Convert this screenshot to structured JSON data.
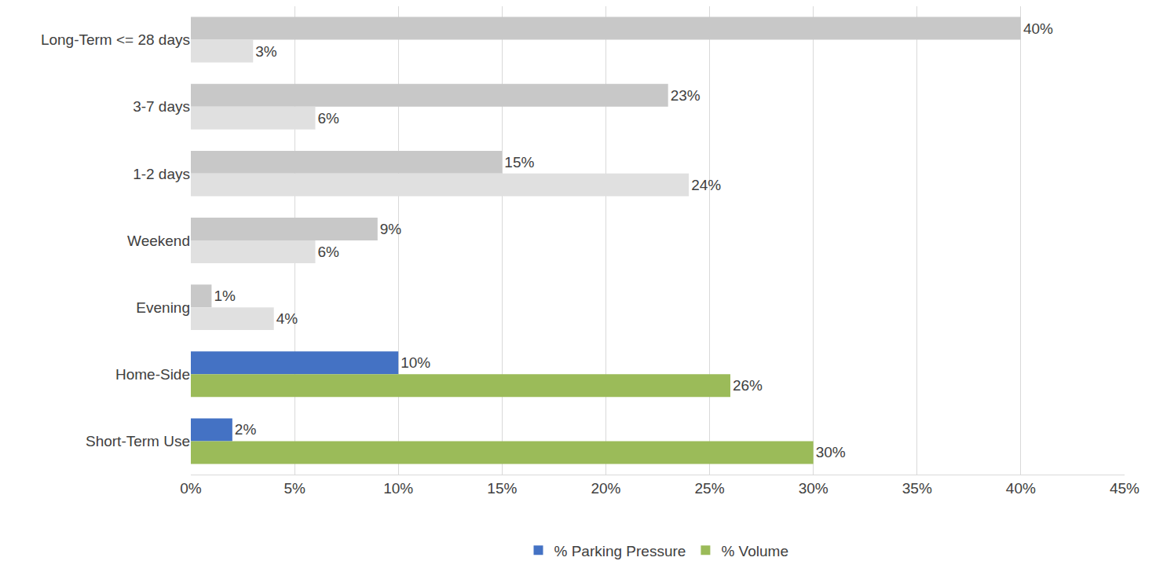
{
  "chart_data": {
    "type": "bar",
    "orientation": "horizontal",
    "categories": [
      "Long-Term <= 28 days",
      "3-7 days",
      "1-2 days",
      "Weekend",
      "Evening",
      "Home-Side",
      "Short-Term Use"
    ],
    "series": [
      {
        "name": "% Parking Pressure",
        "color": "#4472c4",
        "colors": [
          "#c8c8c8",
          "#c8c8c8",
          "#c8c8c8",
          "#c8c8c8",
          "#c8c8c8",
          "#4472c4",
          "#4472c4"
        ],
        "values": [
          40,
          23,
          15,
          9,
          1,
          10,
          2
        ],
        "value_labels": [
          "40%",
          "23%",
          "15%",
          "9%",
          "1%",
          "10%",
          "2%"
        ]
      },
      {
        "name": "% Volume",
        "color": "#9bbb59",
        "colors": [
          "#e0e0e0",
          "#e0e0e0",
          "#e0e0e0",
          "#e0e0e0",
          "#e0e0e0",
          "#9bbb59",
          "#9bbb59"
        ],
        "values": [
          3,
          6,
          24,
          6,
          4,
          26,
          30
        ],
        "value_labels": [
          "3%",
          "6%",
          "24%",
          "6%",
          "4%",
          "26%",
          "30%"
        ]
      }
    ],
    "xlim": [
      0,
      45
    ],
    "xticks": [
      {
        "value": 0,
        "label": "0%"
      },
      {
        "value": 5,
        "label": "5%"
      },
      {
        "value": 10,
        "label": "10%"
      },
      {
        "value": 15,
        "label": "15%"
      },
      {
        "value": 20,
        "label": "20%"
      },
      {
        "value": 25,
        "label": "25%"
      },
      {
        "value": 30,
        "label": "30%"
      },
      {
        "value": 35,
        "label": "35%"
      },
      {
        "value": 40,
        "label": "40%"
      },
      {
        "value": 45,
        "label": "45%"
      }
    ],
    "grid": true,
    "data_labels": true,
    "legend": "bottom"
  }
}
